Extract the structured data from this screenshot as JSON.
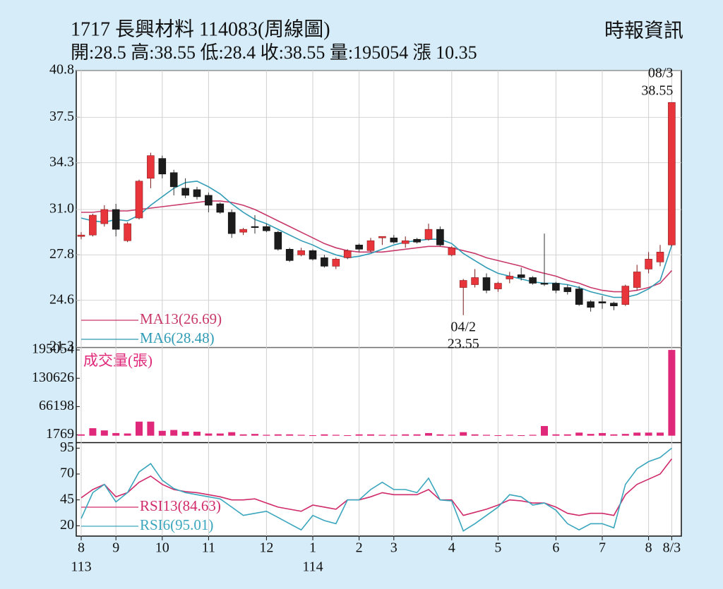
{
  "chart_data": [
    {
      "type": "candlestick",
      "title": "1717  長興材料 114083(周線圖)",
      "subtitle": "開:28.5 高:38.55 低:28.4 收:38.55 量:195054 漲 10.35",
      "source": "時報資訊",
      "categories": [
        "8",
        null,
        null,
        "9",
        null,
        null,
        null,
        "10",
        null,
        null,
        null,
        "11",
        null,
        null,
        null,
        null,
        "12",
        null,
        null,
        null,
        "1",
        null,
        null,
        null,
        "2",
        null,
        null,
        "3",
        null,
        null,
        null,
        null,
        "4",
        null,
        null,
        null,
        "5",
        null,
        null,
        null,
        null,
        "6",
        null,
        null,
        null,
        "7",
        null,
        null,
        null,
        "8",
        null,
        "8/3"
      ],
      "year_labels": [
        "113",
        null,
        null,
        null,
        null,
        null,
        null,
        null,
        null,
        null,
        null,
        null,
        null,
        null,
        null,
        null,
        null,
        null,
        null,
        null,
        "114",
        null,
        null,
        null,
        null,
        null,
        null,
        null,
        null,
        null,
        null,
        null,
        null,
        null,
        null,
        null,
        null,
        null,
        null,
        null,
        null,
        null,
        null,
        null,
        null,
        null,
        null,
        null,
        null,
        null,
        null,
        null
      ],
      "open": [
        29.1,
        29.2,
        30.0,
        31.0,
        28.8,
        30.4,
        33.2,
        34.6,
        33.6,
        32.5,
        32.4,
        32.0,
        31.4,
        30.8,
        29.4,
        29.8,
        29.8,
        29.4,
        28.2,
        27.8,
        28.1,
        27.6,
        27.0,
        27.6,
        28.5,
        28.1,
        29.0,
        29.0,
        28.6,
        28.9,
        28.9,
        29.6,
        27.8,
        25.5,
        25.7,
        26.2,
        25.4,
        26.1,
        26.4,
        26.2,
        25.8,
        25.8,
        25.5,
        25.4,
        24.5,
        24.5,
        24.4,
        24.3,
        25.5,
        26.8,
        27.3,
        28.5
      ],
      "high": [
        29.4,
        30.7,
        31.3,
        31.4,
        30.1,
        33.1,
        35.0,
        34.8,
        33.8,
        33.2,
        32.6,
        32.2,
        31.5,
        31.0,
        29.7,
        30.6,
        30.0,
        29.5,
        28.3,
        28.3,
        28.2,
        27.8,
        27.6,
        28.2,
        28.6,
        29.0,
        29.1,
        29.2,
        29.1,
        29.0,
        30.0,
        29.8,
        28.4,
        26.1,
        26.8,
        26.5,
        25.9,
        26.6,
        26.9,
        26.3,
        29.3,
        25.9,
        25.7,
        25.6,
        24.6,
        24.9,
        24.5,
        25.7,
        27.1,
        28.0,
        28.5,
        38.55
      ],
      "low": [
        28.9,
        29.1,
        29.8,
        29.1,
        28.7,
        30.3,
        32.5,
        33.2,
        32.0,
        31.8,
        31.7,
        30.8,
        30.7,
        29.0,
        29.2,
        29.3,
        29.4,
        28.1,
        27.3,
        27.7,
        27.4,
        26.9,
        26.8,
        27.5,
        28.0,
        28.0,
        28.5,
        28.6,
        28.3,
        28.6,
        28.8,
        28.4,
        27.7,
        23.55,
        25.5,
        25.1,
        25.2,
        25.8,
        26.0,
        25.7,
        25.6,
        25.1,
        25.0,
        24.2,
        23.8,
        24.0,
        23.9,
        24.2,
        25.3,
        26.5,
        27.0,
        28.4
      ],
      "close": [
        29.2,
        30.6,
        31.0,
        29.6,
        30.0,
        33.0,
        34.8,
        33.5,
        32.6,
        32.0,
        31.9,
        31.3,
        30.8,
        29.3,
        29.6,
        29.8,
        29.5,
        28.2,
        27.4,
        28.1,
        27.5,
        27.0,
        27.5,
        28.1,
        28.2,
        28.8,
        29.1,
        28.7,
        28.8,
        28.7,
        29.6,
        28.5,
        28.3,
        26.0,
        26.2,
        25.3,
        25.8,
        26.3,
        26.2,
        25.8,
        25.8,
        25.3,
        25.2,
        24.3,
        24.1,
        24.4,
        24.2,
        25.6,
        26.6,
        27.5,
        28.0,
        38.55
      ],
      "up_color": "#e8343b",
      "down_color": "#1c1c1c",
      "series": [
        {
          "name": "MA13(26.69)",
          "color": "#c8386a",
          "values": [
            30.8,
            30.8,
            30.9,
            30.9,
            30.9,
            31.0,
            31.1,
            31.2,
            31.3,
            31.4,
            31.5,
            31.6,
            31.6,
            31.5,
            31.3,
            31.0,
            30.6,
            30.2,
            29.8,
            29.4,
            29.0,
            28.6,
            28.3,
            28.1,
            28.0,
            28.0,
            28.0,
            28.1,
            28.2,
            28.3,
            28.4,
            28.4,
            28.3,
            28.1,
            27.9,
            27.6,
            27.4,
            27.2,
            27.0,
            26.7,
            26.5,
            26.3,
            26.0,
            25.8,
            25.5,
            25.3,
            25.2,
            25.2,
            25.3,
            25.5,
            25.8,
            26.69
          ]
        },
        {
          "name": "MA6(28.48)",
          "color": "#2f9bb5",
          "values": [
            30.4,
            30.2,
            30.1,
            30.3,
            30.2,
            30.6,
            31.3,
            31.9,
            32.5,
            32.9,
            33.0,
            32.6,
            32.1,
            31.4,
            30.8,
            30.3,
            30.0,
            29.6,
            29.2,
            28.8,
            28.5,
            28.1,
            27.8,
            27.6,
            27.7,
            27.9,
            28.2,
            28.5,
            28.7,
            28.8,
            28.9,
            28.9,
            28.6,
            27.9,
            27.4,
            26.9,
            26.5,
            26.3,
            26.1,
            25.9,
            25.8,
            25.8,
            25.7,
            25.5,
            25.2,
            25.0,
            24.8,
            24.8,
            25.0,
            25.4,
            26.0,
            28.48
          ]
        }
      ],
      "annotations": [
        {
          "date": "08/3",
          "value": 38.55
        },
        {
          "date": "04/2",
          "value": 23.55
        }
      ],
      "ylim": [
        21.3,
        40.8
      ],
      "yticks": [
        40.8,
        37.5,
        34.3,
        {
          "value": 31,
          "label": "31.0"
        },
        27.8,
        24.6,
        21.3
      ],
      "grid": true
    },
    {
      "type": "bar",
      "ylabel": "成交量(張)",
      "color": "#e0287a",
      "values": [
        3000,
        17000,
        12000,
        6000,
        5000,
        32000,
        32000,
        11000,
        13000,
        9000,
        9000,
        5000,
        5000,
        8000,
        3000,
        4000,
        2000,
        3000,
        3000,
        2000,
        1000,
        3000,
        2000,
        1000,
        3000,
        3000,
        2000,
        2000,
        3000,
        3000,
        6000,
        3000,
        2000,
        8000,
        3000,
        2000,
        1000,
        2000,
        1000,
        2000,
        22000,
        3000,
        3000,
        7000,
        4000,
        6000,
        3000,
        4000,
        7000,
        7000,
        7000,
        195054
      ],
      "ylim": [
        -15000,
        200000
      ],
      "yticks": [
        195054,
        130626,
        66198,
        1769
      ]
    },
    {
      "type": "line",
      "series": [
        {
          "name": "RSI13(84.63)",
          "color": "#d02a6a",
          "values": [
            47,
            55,
            60,
            48,
            52,
            62,
            68,
            60,
            55,
            53,
            52,
            50,
            48,
            45,
            45,
            46,
            42,
            38,
            36,
            34,
            40,
            38,
            36,
            45,
            45,
            48,
            52,
            50,
            50,
            50,
            55,
            45,
            45,
            30,
            33,
            36,
            40,
            45,
            44,
            42,
            42,
            38,
            32,
            30,
            32,
            32,
            30,
            50,
            60,
            65,
            70,
            84.63
          ]
        },
        {
          "name": "RSI6(95.01)",
          "color": "#3aa6bd",
          "values": [
            27,
            52,
            60,
            43,
            52,
            72,
            80,
            64,
            56,
            52,
            50,
            48,
            46,
            38,
            30,
            32,
            34,
            28,
            22,
            16,
            30,
            25,
            22,
            45,
            45,
            55,
            62,
            55,
            55,
            52,
            66,
            45,
            44,
            15,
            22,
            30,
            38,
            50,
            48,
            40,
            42,
            35,
            22,
            16,
            22,
            22,
            18,
            60,
            75,
            82,
            86,
            95.01
          ]
        }
      ],
      "ylim": [
        10,
        100
      ],
      "yticks": [
        95,
        70,
        45,
        20
      ]
    }
  ]
}
